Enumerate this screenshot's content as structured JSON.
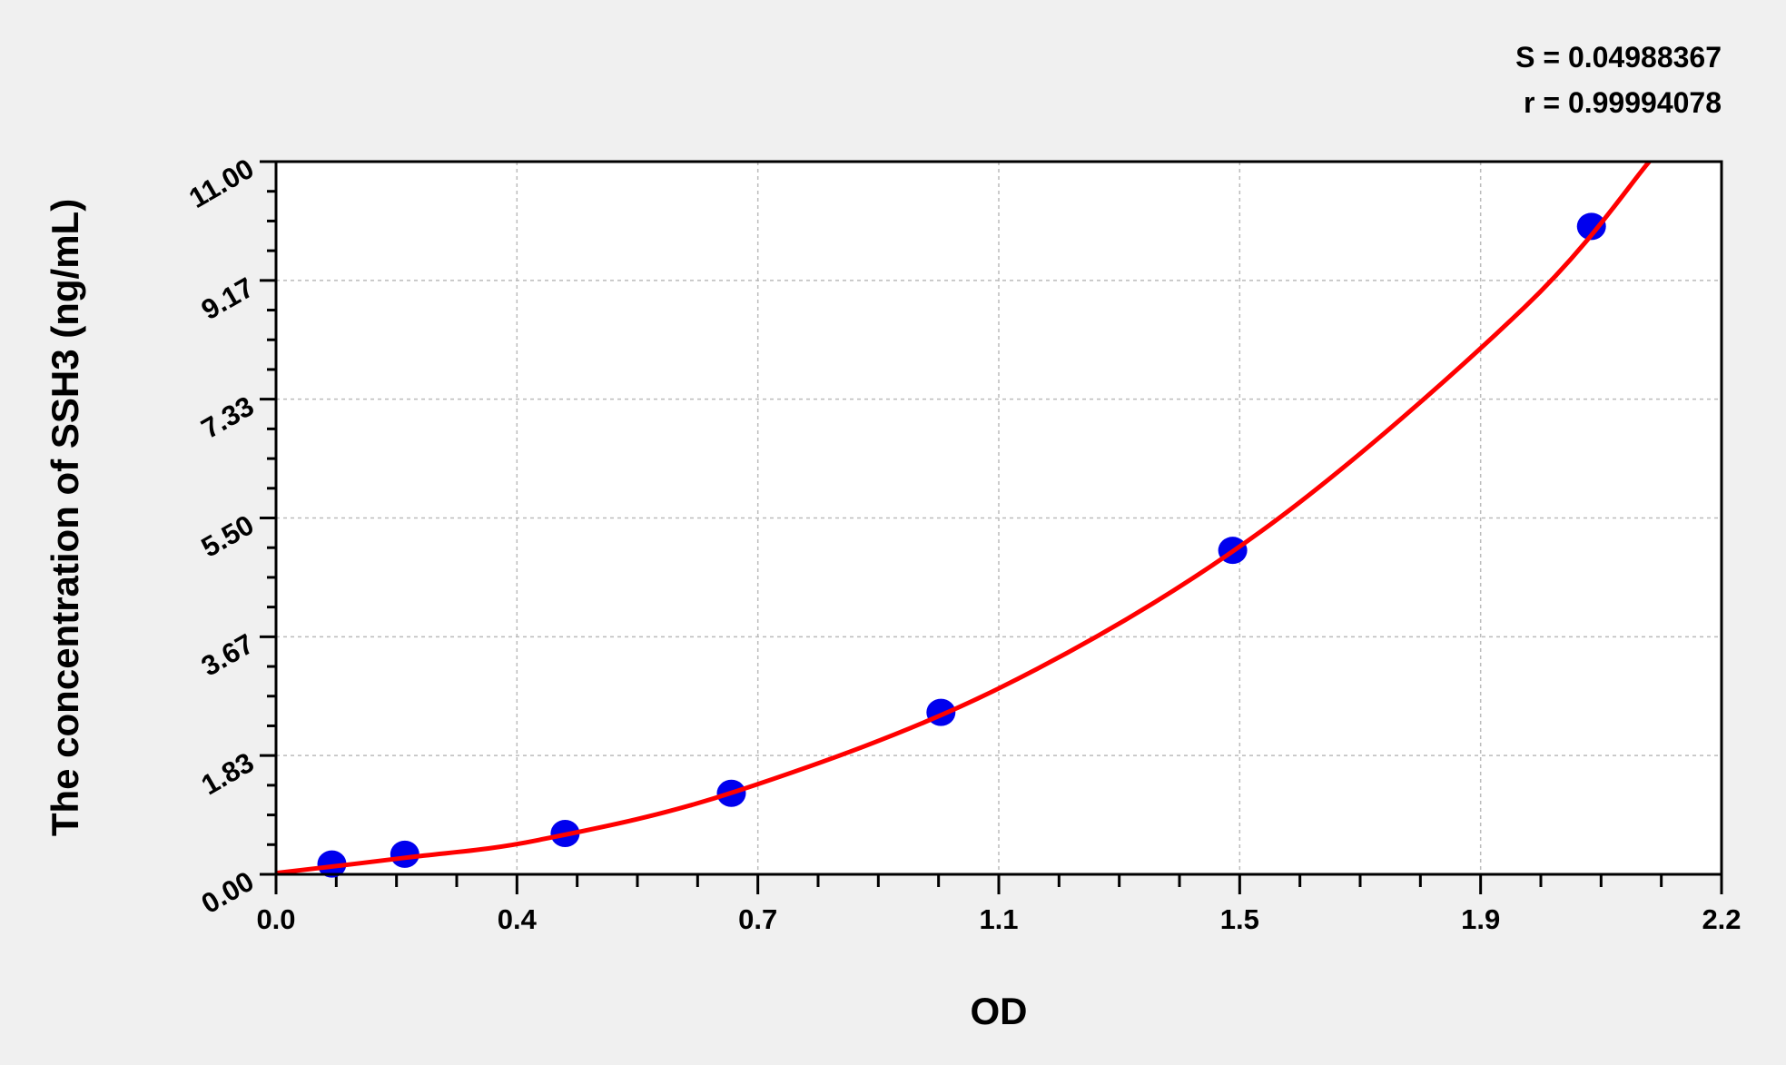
{
  "chart_data": {
    "type": "scatter",
    "title": "",
    "xlabel": "OD",
    "ylabel": "The concentration of SSH3 (ng/mL)",
    "xlim": [
      0,
      2.2
    ],
    "ylim": [
      0,
      11
    ],
    "x_ticks": [
      "0.0",
      "0.4",
      "0.7",
      "1.1",
      "1.5",
      "1.9",
      "2.2"
    ],
    "y_ticks": [
      "0.00",
      "1.83",
      "3.67",
      "5.50",
      "7.33",
      "9.17",
      "11.00"
    ],
    "grid": true,
    "stats": [
      "S = 0.04988367",
      "r = 0.99994078"
    ],
    "colors": {
      "points": "#0000ee",
      "curve": "#ff0000",
      "background": "#f0f0f0",
      "plot": "#ffffff"
    },
    "points": [
      {
        "x": 0.085,
        "y": 0.16
      },
      {
        "x": 0.196,
        "y": 0.31
      },
      {
        "x": 0.44,
        "y": 0.63
      },
      {
        "x": 0.693,
        "y": 1.25
      },
      {
        "x": 1.012,
        "y": 2.5
      },
      {
        "x": 1.456,
        "y": 5.0
      },
      {
        "x": 2.002,
        "y": 10.0
      }
    ],
    "fit_curve": [
      {
        "x": 0.0,
        "y": 0.02
      },
      {
        "x": 0.2,
        "y": 0.26
      },
      {
        "x": 0.4,
        "y": 0.53
      },
      {
        "x": 0.7,
        "y": 1.28
      },
      {
        "x": 1.1,
        "y": 2.87
      },
      {
        "x": 1.5,
        "y": 5.3
      },
      {
        "x": 1.9,
        "y": 8.75
      },
      {
        "x": 2.09,
        "y": 11.0
      }
    ]
  }
}
